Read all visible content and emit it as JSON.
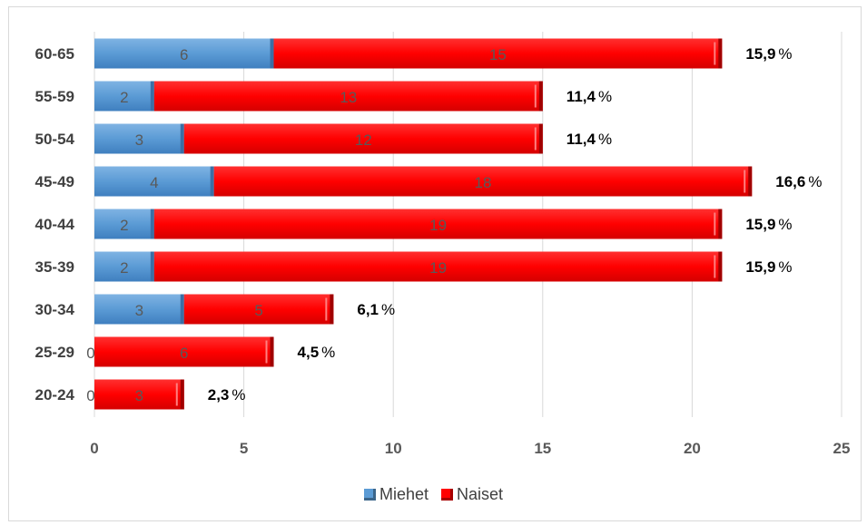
{
  "chart_data": {
    "type": "bar",
    "orientation": "horizontal",
    "stacked": true,
    "categories": [
      "60-65",
      "55-59",
      "50-54",
      "45-49",
      "40-44",
      "35-39",
      "30-34",
      "25-29",
      "20-24"
    ],
    "series": [
      {
        "name": "Miehet",
        "values": [
          6,
          2,
          3,
          4,
          2,
          2,
          3,
          0,
          0
        ],
        "color": "#5b9bd5"
      },
      {
        "name": "Naiset",
        "values": [
          15,
          13,
          12,
          18,
          19,
          19,
          5,
          6,
          3
        ],
        "color": "#ff0000"
      }
    ],
    "percent_labels": [
      "15,9",
      "11,4",
      "11,4",
      "16,6",
      "15,9",
      "15,9",
      "6,1",
      "4,5",
      "2,3"
    ],
    "percent_sign": "%",
    "xlim": [
      0,
      25
    ],
    "xticks": [
      "0",
      "5",
      "10",
      "15",
      "20",
      "25"
    ],
    "xticks_values": [
      0,
      5,
      10,
      15,
      20,
      25
    ],
    "grid": "vertical",
    "legend_position": "bottom",
    "title": "",
    "xlabel": "",
    "ylabel": ""
  }
}
